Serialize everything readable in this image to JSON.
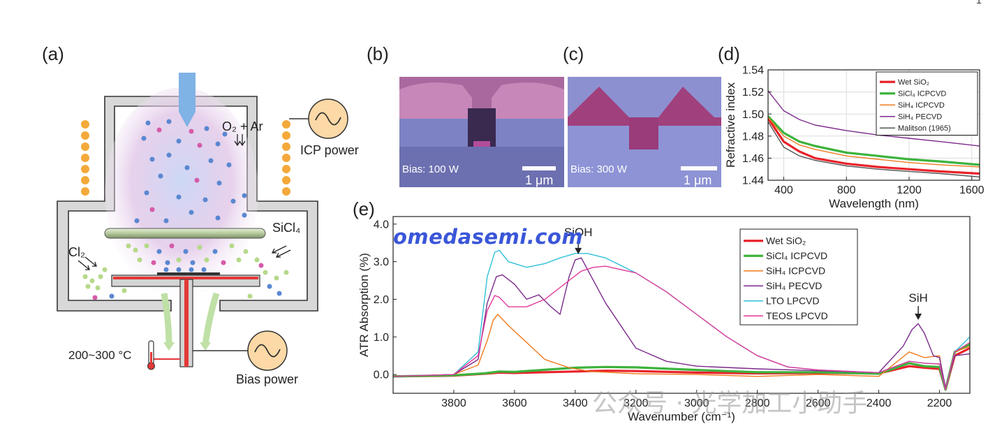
{
  "page_number": "1",
  "panel_a": {
    "label": "(a)",
    "gas_inlet": "O₂ + Ar",
    "icp_power": "ICP power",
    "sicl4": "SiCl₄",
    "cl2": "Cl₂",
    "temperature": "200~300 °C",
    "bias_power": "Bias power"
  },
  "panel_b": {
    "label": "(b)",
    "bias": "Bias: 100 W",
    "scale": "1 μm"
  },
  "panel_c": {
    "label": "(c)",
    "bias": "Bias: 300 W",
    "scale": "1 μm"
  },
  "watermark": "omedasemi.com",
  "wechat_watermark": "公众号 · 光学加工小助手",
  "chart_data": [
    {
      "panel": "(d)",
      "type": "line",
      "xlabel": "Wavelength (nm)",
      "ylabel": "Refractive index",
      "xlim": [
        300,
        1650
      ],
      "ylim": [
        1.44,
        1.54
      ],
      "xticks": [
        400,
        800,
        1200,
        1600
      ],
      "xtick_labels": [
        "400",
        "800",
        "1200",
        "1600"
      ],
      "yticks": [
        1.44,
        1.46,
        1.48,
        1.5,
        1.52,
        1.54
      ],
      "ytick_labels": [
        "1.44",
        "1.46",
        "1.48",
        "1.50",
        "1.52",
        "1.54"
      ],
      "grid": true,
      "legend_position": "top-right",
      "series": [
        {
          "name": "Wet SiO₂",
          "color": "#e8222a",
          "width": 3.2,
          "x": [
            300,
            400,
            500,
            600,
            800,
            1000,
            1200,
            1400,
            1650
          ],
          "y": [
            1.496,
            1.475,
            1.466,
            1.46,
            1.455,
            1.452,
            1.45,
            1.448,
            1.446
          ]
        },
        {
          "name": "SiCl₄ ICPCVD",
          "color": "#3db33d",
          "width": 3.2,
          "x": [
            300,
            400,
            500,
            600,
            800,
            1000,
            1200,
            1400,
            1650
          ],
          "y": [
            1.498,
            1.483,
            1.475,
            1.471,
            1.465,
            1.462,
            1.459,
            1.457,
            1.454
          ]
        },
        {
          "name": "SiH₄ ICPCVD",
          "color": "#f07b21",
          "width": 1.4,
          "x": [
            300,
            400,
            500,
            600,
            800,
            1000,
            1200,
            1400,
            1650
          ],
          "y": [
            1.497,
            1.48,
            1.472,
            1.468,
            1.462,
            1.459,
            1.456,
            1.454,
            1.452
          ]
        },
        {
          "name": "SiH₄ PECVD",
          "color": "#7b2a8c",
          "width": 1.4,
          "x": [
            300,
            400,
            500,
            600,
            800,
            1000,
            1200,
            1400,
            1650
          ],
          "y": [
            1.521,
            1.503,
            1.495,
            1.49,
            1.485,
            1.481,
            1.478,
            1.475,
            1.471
          ]
        },
        {
          "name": "Malitson (1965)",
          "color": "#555555",
          "width": 1.4,
          "x": [
            300,
            400,
            500,
            600,
            800,
            1000,
            1200,
            1400,
            1650
          ],
          "y": [
            1.493,
            1.47,
            1.462,
            1.458,
            1.453,
            1.45,
            1.448,
            1.446,
            1.443
          ]
        }
      ]
    },
    {
      "panel": "(e)",
      "type": "line",
      "xlabel": "Wavenumber (cm⁻¹)",
      "ylabel": "ATR Absorption (%)",
      "xlim": [
        4000,
        2100
      ],
      "ylim": [
        -0.5,
        4.2
      ],
      "xticks": [
        3800,
        3600,
        3400,
        3200,
        3000,
        2800,
        2600,
        2400,
        2200
      ],
      "xtick_labels": [
        "3800",
        "3600",
        "3400",
        "3200",
        "3000",
        "2800",
        "2600",
        "2400",
        "2200"
      ],
      "yticks": [
        0,
        1,
        2,
        3,
        4
      ],
      "ytick_labels": [
        "0.0",
        "1.0",
        "2.0",
        "3.0",
        "4.0"
      ],
      "legend_position": "top-right",
      "annotations": [
        {
          "text": "SiOH",
          "x": 3390,
          "y": 3.2
        },
        {
          "text": "SiH",
          "x": 2270,
          "y": 1.45
        }
      ],
      "series": [
        {
          "name": "Wet SiO₂",
          "color": "#e8222a",
          "width": 3.2,
          "x": [
            4000,
            3800,
            3700,
            3650,
            3600,
            3400,
            3300,
            3200,
            3000,
            2800,
            2600,
            2400,
            2300,
            2250,
            2200,
            2180,
            2150,
            2100
          ],
          "y": [
            -0.05,
            -0.03,
            0.02,
            0.05,
            0.04,
            0.08,
            0.1,
            0.09,
            0.05,
            0.03,
            0.04,
            0.03,
            0.22,
            0.18,
            0.15,
            -0.4,
            0.5,
            0.7
          ]
        },
        {
          "name": "SiCl₄ ICPCVD",
          "color": "#3db33d",
          "width": 3.2,
          "x": [
            4000,
            3800,
            3700,
            3650,
            3600,
            3400,
            3300,
            3200,
            3000,
            2800,
            2600,
            2400,
            2300,
            2250,
            2200,
            2180,
            2150,
            2100
          ],
          "y": [
            -0.05,
            -0.02,
            0.03,
            0.08,
            0.07,
            0.18,
            0.2,
            0.19,
            0.12,
            0.06,
            0.06,
            0.02,
            0.3,
            0.22,
            0.2,
            -0.4,
            0.6,
            0.8
          ]
        },
        {
          "name": "SiH₄ ICPCVD",
          "color": "#f07b21",
          "width": 1.4,
          "x": [
            4000,
            3800,
            3720,
            3690,
            3670,
            3655,
            3620,
            3560,
            3500,
            3420,
            3350,
            3200,
            3000,
            2800,
            2600,
            2400,
            2300,
            2250,
            2200,
            2180,
            2150,
            2100
          ],
          "y": [
            -0.05,
            0.0,
            0.25,
            0.9,
            1.45,
            1.6,
            1.3,
            0.85,
            0.4,
            0.18,
            0.08,
            0.02,
            0.0,
            -0.05,
            0.0,
            -0.05,
            0.6,
            0.45,
            0.5,
            -0.4,
            0.6,
            0.75
          ]
        },
        {
          "name": "SiH₄ PECVD",
          "color": "#7b2a8c",
          "width": 1.4,
          "x": [
            4000,
            3800,
            3720,
            3690,
            3660,
            3640,
            3600,
            3560,
            3520,
            3480,
            3450,
            3420,
            3400,
            3380,
            3360,
            3300,
            3200,
            3100,
            3000,
            2800,
            2600,
            2400,
            2320,
            2290,
            2270,
            2250,
            2220,
            2200,
            2180,
            2150,
            2100
          ],
          "y": [
            -0.05,
            0.0,
            0.4,
            1.9,
            2.6,
            2.65,
            2.4,
            2.0,
            2.12,
            1.8,
            1.6,
            2.6,
            3.05,
            3.1,
            2.8,
            1.9,
            0.7,
            0.35,
            0.22,
            0.15,
            0.1,
            0.05,
            0.75,
            1.2,
            1.35,
            1.1,
            0.5,
            0.45,
            -0.35,
            0.5,
            0.55
          ]
        },
        {
          "name": "LTO LPCVD",
          "color": "#30c0d8",
          "width": 1.4,
          "x": [
            4000,
            3800,
            3720,
            3690,
            3665,
            3650,
            3620,
            3560,
            3500,
            3450,
            3400,
            3360,
            3300,
            3200,
            3100,
            3000,
            2900,
            2800,
            2700,
            2600,
            2400,
            2300,
            2250,
            2200,
            2180,
            2150,
            2100
          ],
          "y": [
            -0.05,
            0.0,
            0.6,
            2.6,
            3.25,
            3.3,
            3.0,
            2.85,
            2.95,
            3.1,
            3.22,
            3.22,
            3.1,
            2.7,
            2.2,
            1.6,
            1.0,
            0.5,
            0.2,
            0.12,
            0.05,
            0.35,
            0.3,
            0.28,
            -0.4,
            0.6,
            1.0
          ]
        },
        {
          "name": "TEOS LPCVD",
          "color": "#e0399a",
          "width": 1.4,
          "x": [
            4000,
            3800,
            3720,
            3690,
            3665,
            3650,
            3620,
            3560,
            3500,
            3420,
            3380,
            3340,
            3300,
            3200,
            3100,
            3000,
            2900,
            2800,
            2700,
            2600,
            2400,
            2300,
            2250,
            2200,
            2180,
            2150,
            2100
          ],
          "y": [
            -0.05,
            0.0,
            0.5,
            1.7,
            2.1,
            2.05,
            1.8,
            1.8,
            2.0,
            2.5,
            2.75,
            2.85,
            2.88,
            2.7,
            2.2,
            1.6,
            1.0,
            0.5,
            0.2,
            0.12,
            0.05,
            0.35,
            0.3,
            0.28,
            -0.4,
            0.6,
            0.85
          ]
        }
      ]
    }
  ]
}
